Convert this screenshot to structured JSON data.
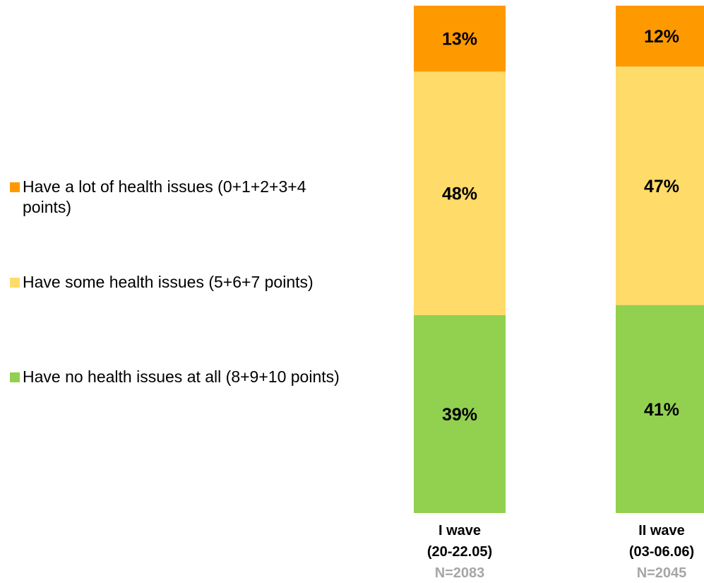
{
  "chart_data": {
    "type": "bar",
    "stacked": true,
    "percent_stacked": true,
    "categories": [
      {
        "label": "I wave",
        "sublabel": "(20-22.05)",
        "n": "N=2083"
      },
      {
        "label": "II wave",
        "sublabel": "(03-06.06)",
        "n": "N=2045"
      }
    ],
    "series": [
      {
        "name": "Have no health issues at all (8+9+10 points)",
        "color": "#92D050",
        "values": [
          39,
          41
        ],
        "labels": [
          "39%",
          "41%"
        ]
      },
      {
        "name": "Have some health issues (5+6+7 points)",
        "color": "#FFDB69",
        "values": [
          48,
          47
        ],
        "labels": [
          "48%",
          "47%"
        ]
      },
      {
        "name": "Have a lot of health issues (0+1+2+3+4 points)",
        "color": "#FF9900",
        "values": [
          13,
          12
        ],
        "labels": [
          "13%",
          "12%"
        ]
      }
    ],
    "legend": {
      "position": "left",
      "order": [
        2,
        1,
        0
      ]
    },
    "ylim": [
      0,
      100
    ],
    "grid": false,
    "n_color": "#A6A6A6"
  }
}
